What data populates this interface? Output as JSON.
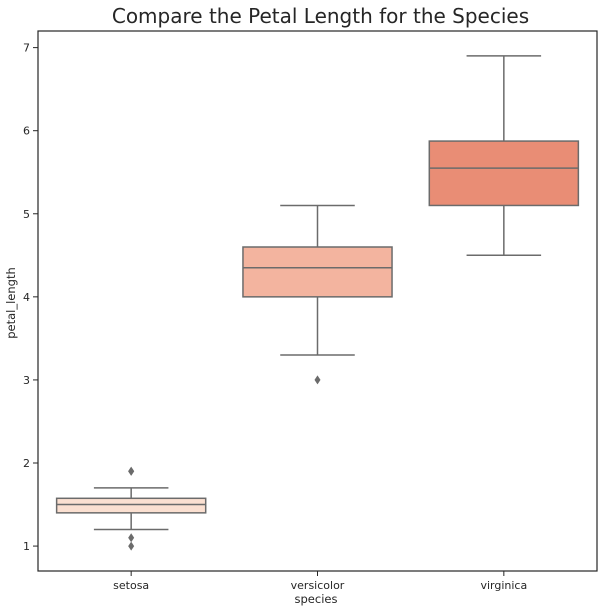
{
  "chart_data": {
    "type": "box",
    "title": "Compare the Petal Length for the Species",
    "xlabel": "species",
    "ylabel": "petal_length",
    "ylim": [
      0.7,
      7.2
    ],
    "yticks": [
      1,
      2,
      3,
      4,
      5,
      6,
      7
    ],
    "grid": false,
    "categories": [
      "setosa",
      "versicolor",
      "virginica"
    ],
    "boxes": [
      {
        "category": "setosa",
        "whisker_low": 1.2,
        "q1": 1.4,
        "median": 1.5,
        "q3": 1.575,
        "whisker_high": 1.7,
        "outliers": [
          1.0,
          1.1,
          1.9,
          1.9
        ],
        "color": "#fbe0d1"
      },
      {
        "category": "versicolor",
        "whisker_low": 3.3,
        "q1": 4.0,
        "median": 4.35,
        "q3": 4.6,
        "whisker_high": 5.1,
        "outliers": [
          3.0
        ],
        "color": "#f3b49f"
      },
      {
        "category": "virginica",
        "whisker_low": 4.5,
        "q1": 5.1,
        "median": 5.55,
        "q3": 5.875,
        "whisker_high": 6.9,
        "outliers": [],
        "color": "#e98d75"
      }
    ],
    "line_color": "#6b6b6b",
    "axis_color": "#262626"
  }
}
